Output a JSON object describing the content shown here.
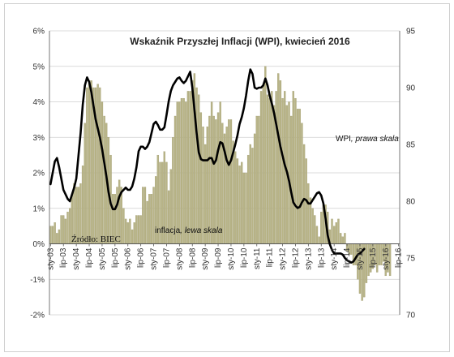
{
  "chart_data": {
    "type": "bar",
    "title": "Wskaźnik Przyszłej Inflacji (WPI), kwiecień 2016",
    "source": "Źródło: BIEC",
    "left_axis": {
      "min": -2,
      "max": 6,
      "step": 1,
      "unit": "%",
      "ticks": [
        "-2%",
        "-1%",
        "0%",
        "1%",
        "2%",
        "3%",
        "4%",
        "5%",
        "6%"
      ]
    },
    "right_axis": {
      "min": 70,
      "max": 95,
      "step": 5,
      "ticks": [
        "70",
        "75",
        "80",
        "85",
        "90",
        "95"
      ]
    },
    "x_start": "2003-01",
    "x_ticks": [
      "sty-03",
      "lip-03",
      "sty-04",
      "lip-04",
      "sty-05",
      "lip-05",
      "sty-06",
      "lip-06",
      "sty-07",
      "lip-07",
      "sty-08",
      "lip-08",
      "sty-09",
      "lip-09",
      "sty-10",
      "lip-10",
      "sty-11",
      "lip-11",
      "sty-12",
      "lip-12",
      "sty-13",
      "lip-13",
      "sty-14",
      "lip-14",
      "sty-15",
      "lip-15",
      "sty-16",
      "lip-16"
    ],
    "annotations": {
      "inflation_label": "inflacja, lewa skala",
      "inflation_name": "inflacja",
      "inflation_scale": ", lewa skala",
      "wpi_label": "WPI, prawa skala",
      "wpi_name": "WPI",
      "wpi_scale": ", prawa skala"
    },
    "colors": {
      "bars": "#b8b487",
      "bars_edge": "#9e9a6e",
      "line": "#000000",
      "grid": "#cfcfcf"
    },
    "series": [
      {
        "name": "inflacja",
        "axis": "left",
        "kind": "bar",
        "monthly_values": [
          0.5,
          0.5,
          0.6,
          0.3,
          0.4,
          0.8,
          0.8,
          0.7,
          0.9,
          1.0,
          1.4,
          1.7,
          1.6,
          1.6,
          1.7,
          2.2,
          3.4,
          4.4,
          4.6,
          4.6,
          4.4,
          4.4,
          4.5,
          4.4,
          4.0,
          3.6,
          3.4,
          3.0,
          2.5,
          1.4,
          1.4,
          1.6,
          1.8,
          1.6,
          1.0,
          0.7,
          0.6,
          0.7,
          0.4,
          0.6,
          0.8,
          0.8,
          0.8,
          1.6,
          1.6,
          1.2,
          1.4,
          1.4,
          1.6,
          1.9,
          2.5,
          2.3,
          2.3,
          2.6,
          2.3,
          1.5,
          2.1,
          3.0,
          3.6,
          4.0,
          4.0,
          4.1,
          4.1,
          4.0,
          4.3,
          4.3,
          4.6,
          4.8,
          4.4,
          4.2,
          3.7,
          3.3,
          2.8,
          3.3,
          3.6,
          4.0,
          3.6,
          3.5,
          3.7,
          4.0,
          3.4,
          3.1,
          3.3,
          3.5,
          3.5,
          2.9,
          2.6,
          2.4,
          2.2,
          2.3,
          2.0,
          2.0,
          2.5,
          2.8,
          2.7,
          3.1,
          3.6,
          3.6,
          4.3,
          4.5,
          5.0,
          4.2,
          4.1,
          4.3,
          3.9,
          4.3,
          4.8,
          4.6,
          4.1,
          4.3,
          3.9,
          4.0,
          3.6,
          4.3,
          4.1,
          3.8,
          3.8,
          3.4,
          2.8,
          2.4,
          1.7,
          1.3,
          1.0,
          0.8,
          0.5,
          0.2,
          0.9,
          1.1,
          1.1,
          0.9,
          0.4,
          0.7,
          0.5,
          0.6,
          0.7,
          0.3,
          0.2,
          0.3,
          -0.2,
          -0.3,
          -0.3,
          -0.6,
          -0.6,
          -1.0,
          -1.4,
          -1.6,
          -1.5,
          -1.1,
          -0.9,
          -0.8,
          -0.7,
          -0.6,
          -0.8,
          -0.6,
          -0.6,
          -0.5,
          -0.9,
          -0.8,
          -0.9
        ]
      },
      {
        "name": "WPI",
        "axis": "right",
        "kind": "line",
        "points": [
          [
            0,
            81.5
          ],
          [
            1,
            82.5
          ],
          [
            2,
            83.5
          ],
          [
            3,
            83.8
          ],
          [
            4,
            83.0
          ],
          [
            5,
            82.0
          ],
          [
            6,
            81.0
          ],
          [
            7,
            80.6
          ],
          [
            8,
            80.2
          ],
          [
            9,
            80.0
          ],
          [
            10,
            80.6
          ],
          [
            11,
            81.2
          ],
          [
            12,
            82.0
          ],
          [
            13,
            84.0
          ],
          [
            14,
            86.0
          ],
          [
            15,
            88.5
          ],
          [
            16,
            90.2
          ],
          [
            17,
            90.9
          ],
          [
            18,
            90.5
          ],
          [
            19,
            89.6
          ],
          [
            20,
            88.4
          ],
          [
            21,
            87.2
          ],
          [
            22,
            86.4
          ],
          [
            23,
            85.6
          ],
          [
            24,
            84.6
          ],
          [
            25,
            83.4
          ],
          [
            26,
            82.2
          ],
          [
            27,
            80.8
          ],
          [
            28,
            79.8
          ],
          [
            29,
            79.3
          ],
          [
            30,
            79.3
          ],
          [
            31,
            79.7
          ],
          [
            32,
            80.4
          ],
          [
            33,
            80.8
          ],
          [
            34,
            81.0
          ],
          [
            35,
            81.2
          ],
          [
            36,
            81.0
          ],
          [
            37,
            81.0
          ],
          [
            38,
            81.3
          ],
          [
            39,
            82.0
          ],
          [
            40,
            83.0
          ],
          [
            41,
            84.4
          ],
          [
            42,
            84.8
          ],
          [
            43,
            84.8
          ],
          [
            44,
            84.6
          ],
          [
            45,
            84.8
          ],
          [
            46,
            85.2
          ],
          [
            47,
            86.0
          ],
          [
            48,
            86.8
          ],
          [
            49,
            87.0
          ],
          [
            50,
            86.7
          ],
          [
            51,
            86.3
          ],
          [
            52,
            86.3
          ],
          [
            53,
            86.5
          ],
          [
            54,
            87.6
          ],
          [
            55,
            88.8
          ],
          [
            56,
            89.7
          ],
          [
            57,
            90.2
          ],
          [
            58,
            90.5
          ],
          [
            59,
            90.8
          ],
          [
            60,
            90.9
          ],
          [
            61,
            90.6
          ],
          [
            62,
            90.4
          ],
          [
            63,
            90.6
          ],
          [
            64,
            91.0
          ],
          [
            65,
            91.4
          ],
          [
            66,
            90.0
          ],
          [
            67,
            88.0
          ],
          [
            68,
            86.0
          ],
          [
            69,
            84.3
          ],
          [
            70,
            83.7
          ],
          [
            71,
            83.6
          ],
          [
            72,
            83.6
          ],
          [
            73,
            83.6
          ],
          [
            74,
            83.8
          ],
          [
            75,
            83.8
          ],
          [
            76,
            83.3
          ],
          [
            77,
            83.6
          ],
          [
            78,
            84.5
          ],
          [
            79,
            85.2
          ],
          [
            80,
            85.1
          ],
          [
            81,
            84.4
          ],
          [
            82,
            83.6
          ],
          [
            83,
            83.2
          ],
          [
            84,
            83.6
          ],
          [
            85,
            84.3
          ],
          [
            86,
            85.0
          ],
          [
            87,
            85.8
          ],
          [
            88,
            86.8
          ],
          [
            89,
            87.4
          ],
          [
            90,
            88.2
          ],
          [
            91,
            89.3
          ],
          [
            92,
            90.6
          ],
          [
            93,
            91.6
          ],
          [
            94,
            91.2
          ],
          [
            95,
            90.0
          ],
          [
            96,
            89.9
          ],
          [
            97,
            90.0
          ],
          [
            98,
            90.0
          ],
          [
            99,
            90.2
          ],
          [
            100,
            90.8
          ],
          [
            101,
            90.2
          ],
          [
            102,
            89.3
          ],
          [
            103,
            88.6
          ],
          [
            104,
            87.8
          ],
          [
            105,
            86.8
          ],
          [
            106,
            85.8
          ],
          [
            107,
            84.8
          ],
          [
            108,
            84.0
          ],
          [
            109,
            83.2
          ],
          [
            110,
            82.6
          ],
          [
            111,
            81.8
          ],
          [
            112,
            80.8
          ],
          [
            113,
            79.9
          ],
          [
            114,
            79.6
          ],
          [
            115,
            79.4
          ],
          [
            116,
            79.5
          ],
          [
            117,
            79.9
          ],
          [
            118,
            80.2
          ],
          [
            119,
            80.1
          ],
          [
            120,
            79.8
          ],
          [
            121,
            79.8
          ],
          [
            122,
            80.1
          ],
          [
            123,
            80.4
          ],
          [
            124,
            80.7
          ],
          [
            125,
            80.8
          ],
          [
            126,
            80.5
          ],
          [
            127,
            79.8
          ],
          [
            128,
            78.5
          ],
          [
            129,
            77.0
          ],
          [
            130,
            76.2
          ],
          [
            131,
            75.7
          ],
          [
            132,
            75.4
          ],
          [
            133,
            75.4
          ],
          [
            134,
            75.4
          ],
          [
            135,
            75.4
          ],
          [
            136,
            75.3
          ],
          [
            137,
            75.0
          ],
          [
            138,
            74.8
          ],
          [
            139,
            74.7
          ],
          [
            140,
            74.6
          ],
          [
            141,
            74.7
          ],
          [
            142,
            75.0
          ],
          [
            143,
            75.3
          ],
          [
            144,
            75.4
          ],
          [
            145,
            75.6
          ],
          [
            146,
            75.8
          ]
        ]
      }
    ]
  }
}
